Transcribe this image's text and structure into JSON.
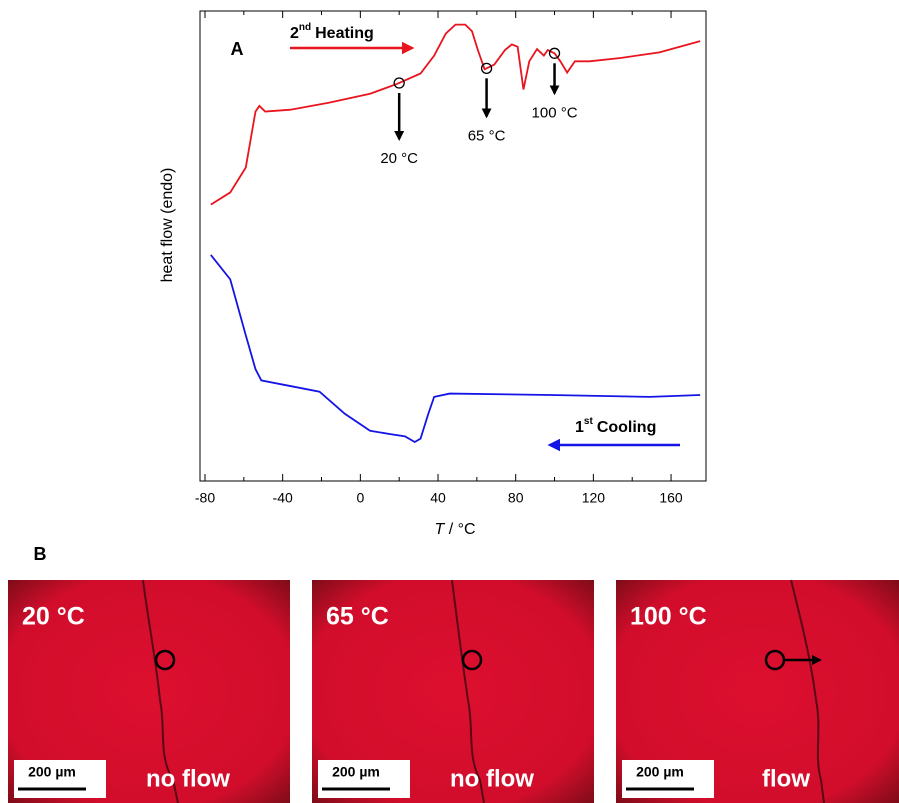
{
  "chart_data": {
    "type": "line",
    "panel_label": "A",
    "y_label": "heat flow (endo)",
    "x_label_var": "T",
    "x_label_unit": "/ °C",
    "xlim": [
      -80,
      178
    ],
    "xticks": [
      -80,
      -40,
      0,
      40,
      80,
      120,
      160
    ],
    "xminorticks": [
      -60,
      -20,
      20,
      60,
      100,
      140
    ],
    "ylim": [
      0,
      100
    ],
    "series": [
      {
        "name_num": "2",
        "name_sup": "nd",
        "name_rest": "Heating",
        "color": "#e8141e",
        "x": [
          -77,
          -67,
          -59,
          -54,
          -52,
          -49,
          -36,
          -16,
          5,
          19,
          31,
          38,
          44,
          49,
          54,
          57.5,
          60.5,
          64,
          69,
          74.5,
          78,
          81,
          84,
          87,
          91,
          94.5,
          96.5,
          100,
          103,
          106.5,
          110.5,
          118,
          134,
          154,
          175
        ],
        "values": [
          58.8,
          61.4,
          66.7,
          78.6,
          79.8,
          78.6,
          79,
          80.5,
          82.4,
          84.5,
          86.7,
          90.5,
          95.2,
          97.1,
          97.1,
          95.7,
          91.7,
          87.6,
          88.6,
          91.7,
          92.9,
          92.4,
          83.3,
          89.3,
          91.9,
          90.5,
          91.7,
          91,
          89.3,
          86.9,
          89.3,
          89.3,
          90,
          91.2,
          93.6
        ]
      },
      {
        "name_num": "1",
        "name_sup": "st",
        "name_rest": "Cooling",
        "color": "#1414e6",
        "x": [
          -77,
          -67,
          -59,
          -54,
          -51,
          -36,
          -21,
          -8,
          5,
          15,
          23,
          28,
          31,
          35,
          38,
          46,
          98,
          149,
          175
        ],
        "values": [
          48.1,
          42.9,
          31,
          23.8,
          21.4,
          20.2,
          19,
          14.3,
          10.7,
          10,
          9.5,
          8.3,
          9,
          14.3,
          17.9,
          18.6,
          18.3,
          17.9,
          18.3
        ]
      }
    ],
    "markers": [
      {
        "x": 20,
        "label": "20 °C"
      },
      {
        "x": 65,
        "label": "65 °C"
      },
      {
        "x": 100,
        "label": "100 °C"
      }
    ]
  },
  "micrographs": {
    "panel_label": "B",
    "panels": [
      {
        "temperature": "20 °C",
        "flow": "no flow",
        "scale_bar": "200 µm"
      },
      {
        "temperature": "65 °C",
        "flow": "no flow",
        "scale_bar": "200 µm"
      },
      {
        "temperature": "100 °C",
        "flow": "flow",
        "scale_bar": "200 µm"
      }
    ]
  }
}
